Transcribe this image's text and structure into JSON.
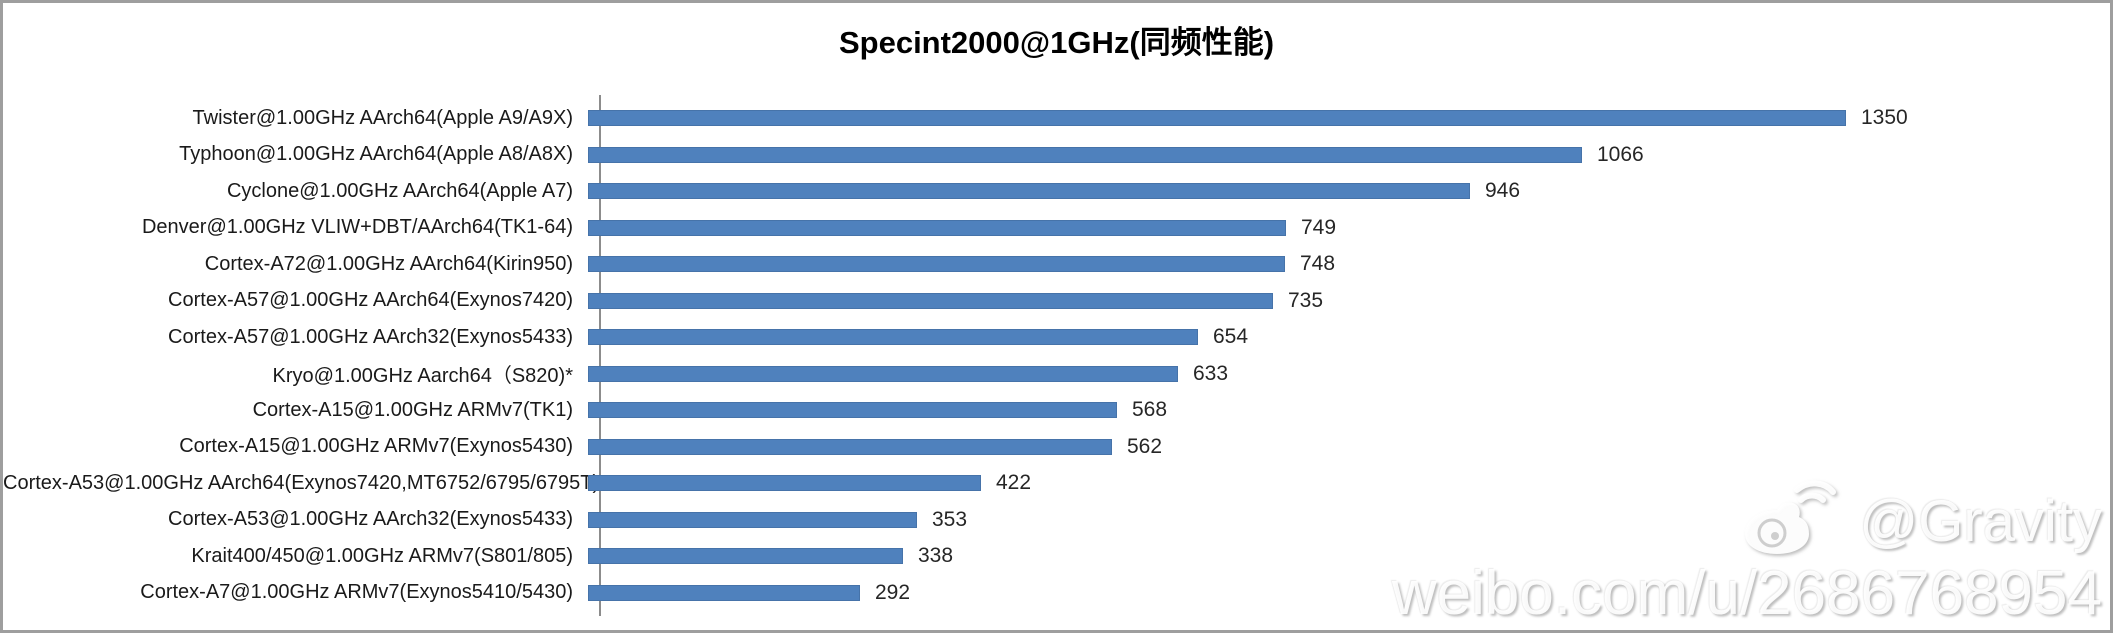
{
  "title": "Specint2000@1GHz(同频性能)",
  "chart_data": {
    "type": "bar",
    "orientation": "horizontal",
    "title": "Specint2000@1GHz(同频性能)",
    "categories": [
      "Twister@1.00GHz AArch64(Apple A9/A9X)",
      "Typhoon@1.00GHz AArch64(Apple A8/A8X)",
      "Cyclone@1.00GHz AArch64(Apple A7)",
      "Denver@1.00GHz VLIW+DBT/AArch64(TK1-64)",
      "Cortex-A72@1.00GHz AArch64(Kirin950)",
      "Cortex-A57@1.00GHz AArch64(Exynos7420)",
      "Cortex-A57@1.00GHz AArch32(Exynos5433)",
      "Kryo@1.00GHz Aarch64（S820)*",
      "Cortex-A15@1.00GHz ARMv7(TK1)",
      "Cortex-A15@1.00GHz ARMv7(Exynos5430)",
      "Cortex-A53@1.00GHz AArch64(Exynos7420,MT6752/6795/6795T)",
      "Cortex-A53@1.00GHz AArch32(Exynos5433)",
      "Krait400/450@1.00GHz ARMv7(S801/805)",
      "Cortex-A7@1.00GHz ARMv7(Exynos5410/5430)"
    ],
    "values": [
      1350,
      1066,
      946,
      749,
      748,
      735,
      654,
      633,
      568,
      562,
      422,
      353,
      338,
      292
    ],
    "value_labels_shown": true,
    "xlabel": "",
    "ylabel": "",
    "xlim": [
      0,
      1450
    ],
    "grid": false,
    "legend_position": "none",
    "bar_color": "#4f81bd",
    "axis_color": "#8c8c8c"
  },
  "watermark": {
    "handle": "@Gravity",
    "url_text": "weibo.com/u/2686768954",
    "logo": "weibo-logo"
  }
}
